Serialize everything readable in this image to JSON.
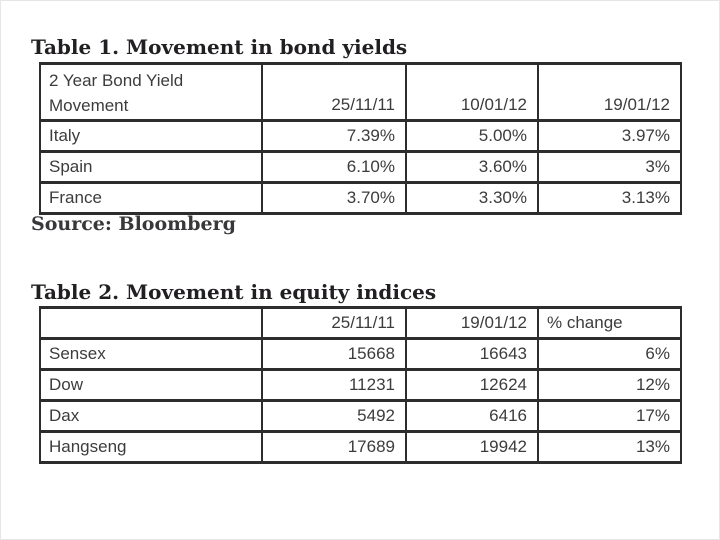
{
  "page": {
    "background": "#ffffff",
    "border_color": "#2d2d2d",
    "text_color": "#3c3c3c",
    "title_color": "#211f22"
  },
  "table1": {
    "title": "Table 1. Movement in bond yields",
    "header": [
      "2 Year Bond Yield Movement",
      "25/11/11",
      "10/01/12",
      "19/01/12"
    ],
    "rows": [
      [
        "Italy",
        "7.39%",
        "5.00%",
        "3.97%"
      ],
      [
        "Spain",
        "6.10%",
        "3.60%",
        "3%"
      ],
      [
        "France",
        "3.70%",
        "3.30%",
        "3.13%"
      ]
    ],
    "source": "Source: Bloomberg"
  },
  "table2": {
    "title": "Table 2. Movement in equity indices",
    "header": [
      "",
      "25/11/11",
      "19/01/12",
      "% change"
    ],
    "rows": [
      [
        "Sensex",
        "15668",
        "16643",
        "6%"
      ],
      [
        "Dow",
        "11231",
        "12624",
        "12%"
      ],
      [
        "Dax",
        "5492",
        "6416",
        "17%"
      ],
      [
        "Hangseng",
        "17689",
        "19942",
        "13%"
      ]
    ]
  },
  "chart_data": [
    {
      "type": "table",
      "title": "Table 1. Movement in bond yields",
      "columns": [
        "2 Year Bond Yield Movement",
        "25/11/11",
        "10/01/12",
        "19/01/12"
      ],
      "rows": [
        {
          "country": "Italy",
          "25/11/11": "7.39%",
          "10/01/12": "5.00%",
          "19/01/12": "3.97%"
        },
        {
          "country": "Spain",
          "25/11/11": "6.10%",
          "10/01/12": "3.60%",
          "19/01/12": "3%"
        },
        {
          "country": "France",
          "25/11/11": "3.70%",
          "10/01/12": "3.30%",
          "19/01/12": "3.13%"
        }
      ],
      "source": "Bloomberg"
    },
    {
      "type": "table",
      "title": "Table 2. Movement in equity indices",
      "columns": [
        "",
        "25/11/11",
        "19/01/12",
        "% change"
      ],
      "rows": [
        {
          "index": "Sensex",
          "25/11/11": 15668,
          "19/01/12": 16643,
          "% change": "6%"
        },
        {
          "index": "Dow",
          "25/11/11": 11231,
          "19/01/12": 12624,
          "% change": "12%"
        },
        {
          "index": "Dax",
          "25/11/11": 5492,
          "19/01/12": 6416,
          "% change": "17%"
        },
        {
          "index": "Hangseng",
          "25/11/11": 17689,
          "19/01/12": 19942,
          "% change": "13%"
        }
      ]
    }
  ]
}
